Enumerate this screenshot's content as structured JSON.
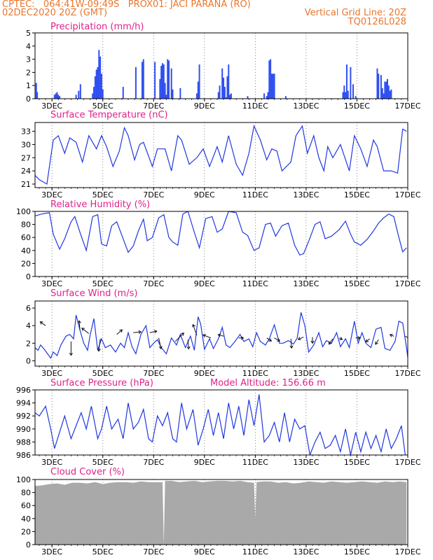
{
  "header": {
    "line1_left": "CPTEC:   064:41W-09:49S   PROX01: JACI PARANA (RO)",
    "line2_left": "02DEC2020 20Z (GMT)",
    "line2_right": "Vertical Grid Line: 20Z",
    "line3_right": "TQ0126L028"
  },
  "colors": {
    "header": "#e8772e",
    "title": "#e0218a",
    "series": "#2038e0",
    "bar": "#2f4ff0",
    "cloud": "#a9a9a9"
  },
  "chart_data": [
    {
      "type": "bar",
      "title": "Precipitation (mm/h)",
      "ylim": [
        0,
        5
      ],
      "yticks": [
        0,
        1,
        2,
        3,
        4,
        5
      ],
      "xlim": [
        2.333,
        17.0
      ],
      "xticks": [
        3,
        5,
        7,
        9,
        11,
        13,
        15,
        17
      ],
      "xticklabels": [
        "3DEC",
        "5DEC",
        "7DEC",
        "9DEC",
        "11DEC",
        "13DEC",
        "15DEC",
        "17DEC"
      ],
      "grid": "dotted",
      "x": [
        2.38,
        2.42,
        3.1,
        3.15,
        3.2,
        3.25,
        3.3,
        3.95,
        4.05,
        4.12,
        4.6,
        4.65,
        4.7,
        4.75,
        4.8,
        4.85,
        4.9,
        4.95,
        5.0,
        5.8,
        6.3,
        6.55,
        6.6,
        7.05,
        7.25,
        7.3,
        7.35,
        7.4,
        7.45,
        7.5,
        7.55,
        7.6,
        7.7,
        7.75,
        8.05,
        8.7,
        8.75,
        8.8,
        9.55,
        9.6,
        9.7,
        9.75,
        9.8,
        9.85,
        9.9,
        9.95,
        10.0,
        10.05,
        10.7,
        11.35,
        11.45,
        11.5,
        11.55,
        11.6,
        11.65,
        11.7,
        11.75,
        12.2,
        14.45,
        14.5,
        14.55,
        14.6,
        14.65,
        14.75,
        14.85,
        14.95,
        15.8,
        15.85,
        15.95,
        16.0,
        16.05,
        16.1,
        16.15,
        16.2,
        16.25,
        16.3,
        16.35
      ],
      "values": [
        1.2,
        0.5,
        0.3,
        0.4,
        0.5,
        0.3,
        0.2,
        0.3,
        0.6,
        1.1,
        0.4,
        0.9,
        1.7,
        2.2,
        2.4,
        3.7,
        3.2,
        1.9,
        0.7,
        0.9,
        2.4,
        2.8,
        3.0,
        2.8,
        1.5,
        2.5,
        2.7,
        2.6,
        1.2,
        0.3,
        3.0,
        2.9,
        2.3,
        0.7,
        0.8,
        0.4,
        1.3,
        2.6,
        0.5,
        1.0,
        2.3,
        1.6,
        0.9,
        0.1,
        1.7,
        2.6,
        0.3,
        0.4,
        0.2,
        0.4,
        0.2,
        0.5,
        2.9,
        3.0,
        1.9,
        1.9,
        1.9,
        0.2,
        0.5,
        1.0,
        0.5,
        2.6,
        0.6,
        2.4,
        1.1,
        0.2,
        2.3,
        1.9,
        1.8,
        0.8,
        0.4,
        1.3,
        1.3,
        1.5,
        1.0,
        0.6,
        0.7
      ]
    },
    {
      "type": "line",
      "title": "Surface Temperature (nC)",
      "ylim": [
        20.2,
        35.0
      ],
      "yticks": [
        21,
        24,
        27,
        30,
        33
      ],
      "xlim": [
        2.333,
        17.0
      ],
      "xticks": [
        3,
        5,
        7,
        9,
        11,
        13,
        15,
        17
      ],
      "xticklabels": [
        "3DEC",
        "5DEC",
        "7DEC",
        "9DEC",
        "11DEC",
        "13DEC",
        "15DEC",
        "17DEC"
      ],
      "grid": "dotted",
      "x": [
        2.33,
        2.5,
        2.8,
        3.05,
        3.25,
        3.5,
        3.7,
        3.95,
        4.2,
        4.45,
        4.75,
        4.95,
        5.15,
        5.4,
        5.65,
        5.85,
        6.0,
        6.25,
        6.45,
        6.6,
        6.95,
        7.15,
        7.45,
        7.7,
        7.95,
        8.1,
        8.4,
        8.7,
        8.95,
        9.2,
        9.5,
        9.7,
        9.95,
        10.25,
        10.5,
        10.75,
        10.95,
        11.2,
        11.45,
        11.65,
        11.85,
        12.05,
        12.4,
        12.6,
        12.85,
        13.05,
        13.3,
        13.5,
        13.7,
        13.85,
        14.05,
        14.35,
        14.7,
        14.9,
        15.15,
        15.4,
        15.65,
        15.8,
        16.05,
        16.35,
        16.6,
        16.8,
        16.95
      ],
      "values": [
        23.0,
        22.0,
        21.0,
        31.0,
        32.0,
        28.0,
        31.5,
        30.5,
        26.0,
        32.0,
        29.0,
        32.0,
        29.5,
        25.0,
        28.5,
        33.8,
        32.0,
        26.5,
        30.0,
        30.5,
        25.0,
        29.0,
        29.0,
        24.0,
        32.0,
        31.0,
        25.5,
        27.0,
        29.0,
        25.0,
        29.5,
        26.0,
        32.0,
        25.5,
        23.0,
        28.0,
        34.2,
        31.0,
        26.5,
        29.0,
        28.5,
        24.0,
        26.0,
        32.0,
        34.2,
        28.0,
        32.0,
        27.0,
        24.0,
        29.5,
        27.0,
        30.0,
        24.0,
        32.0,
        29.0,
        25.0,
        31.0,
        29.5,
        24.0,
        24.0,
        23.5,
        33.5,
        33.0
      ]
    },
    {
      "type": "line",
      "title": "Relative Humidity (%)",
      "ylim": [
        0,
        100
      ],
      "yticks": [
        0,
        20,
        40,
        60,
        80,
        100
      ],
      "xlim": [
        2.333,
        17.0
      ],
      "xticks": [
        3,
        5,
        7,
        9,
        11,
        13,
        15,
        17
      ],
      "xticklabels": [
        "3DEC",
        "5DEC",
        "7DEC",
        "9DEC",
        "11DEC",
        "13DEC",
        "15DEC",
        "17DEC"
      ],
      "grid": "dotted",
      "x": [
        2.33,
        2.6,
        2.9,
        3.05,
        3.3,
        3.5,
        3.75,
        3.9,
        4.1,
        4.35,
        4.6,
        4.8,
        4.95,
        5.15,
        5.35,
        5.55,
        5.8,
        6.0,
        6.2,
        6.4,
        6.6,
        6.75,
        6.95,
        7.2,
        7.4,
        7.6,
        7.75,
        7.95,
        8.15,
        8.35,
        8.6,
        8.8,
        9.05,
        9.3,
        9.5,
        9.7,
        9.95,
        10.25,
        10.5,
        10.7,
        10.95,
        11.15,
        11.4,
        11.6,
        11.8,
        12.05,
        12.3,
        12.55,
        12.75,
        12.9,
        13.1,
        13.35,
        13.55,
        13.75,
        14.0,
        14.3,
        14.55,
        14.75,
        14.9,
        15.15,
        15.4,
        15.65,
        15.85,
        16.05,
        16.25,
        16.45,
        16.65,
        16.8,
        16.95
      ],
      "values": [
        93,
        96,
        98,
        65,
        42,
        58,
        84,
        92,
        68,
        40,
        92,
        95,
        50,
        47,
        78,
        84,
        58,
        37,
        47,
        70,
        88,
        55,
        60,
        90,
        95,
        60,
        53,
        48,
        96,
        100,
        68,
        44,
        89,
        92,
        68,
        73,
        100,
        98,
        68,
        63,
        40,
        44,
        80,
        82,
        62,
        78,
        82,
        48,
        33,
        35,
        54,
        80,
        84,
        58,
        62,
        72,
        85,
        65,
        53,
        48,
        57,
        70,
        82,
        90,
        96,
        92,
        60,
        38,
        44
      ]
    },
    {
      "type": "line",
      "title": "Surface Wind (m/s)",
      "ylim": [
        -0.6,
        6.8
      ],
      "yticks": [
        0,
        2,
        4,
        6
      ],
      "xlim": [
        2.333,
        17.0
      ],
      "xticks": [
        3,
        5,
        7,
        9,
        11,
        13,
        15,
        17
      ],
      "xticklabels": [
        "3DEC",
        "5DEC",
        "7DEC",
        "9DEC",
        "11DEC",
        "13DEC",
        "15DEC",
        "17DEC"
      ],
      "grid": "dotted",
      "x": [
        2.33,
        2.45,
        2.55,
        2.7,
        2.8,
        2.95,
        3.05,
        3.2,
        3.35,
        3.55,
        3.7,
        3.85,
        3.95,
        4.1,
        4.25,
        4.4,
        4.5,
        4.65,
        4.8,
        4.95,
        5.1,
        5.3,
        5.5,
        5.7,
        5.85,
        6.0,
        6.15,
        6.3,
        6.5,
        6.7,
        6.85,
        7.0,
        7.15,
        7.3,
        7.5,
        7.7,
        7.9,
        8.05,
        8.25,
        8.45,
        8.6,
        8.75,
        8.85,
        9.0,
        9.2,
        9.35,
        9.55,
        9.7,
        9.85,
        10.0,
        10.2,
        10.4,
        10.55,
        10.75,
        10.9,
        11.05,
        11.2,
        11.4,
        11.55,
        11.75,
        11.95,
        12.1,
        12.3,
        12.5,
        12.65,
        12.8,
        12.95,
        13.1,
        13.3,
        13.5,
        13.65,
        13.8,
        14.0,
        14.2,
        14.35,
        14.55,
        14.7,
        14.9,
        15.05,
        15.2,
        15.35,
        15.55,
        15.75,
        15.95,
        16.1,
        16.3,
        16.5,
        16.65,
        16.8,
        16.95,
        17.0
      ],
      "values": [
        1.5,
        1.2,
        1.8,
        1.3,
        0.9,
        0.3,
        1.0,
        0.6,
        1.8,
        2.8,
        3.0,
        2.5,
        5.2,
        3.5,
        2.0,
        1.2,
        2.9,
        4.8,
        1.2,
        2.5,
        1.5,
        1.8,
        1.0,
        2.0,
        1.5,
        3.2,
        1.6,
        0.8,
        3.0,
        4.0,
        1.5,
        2.0,
        2.4,
        1.5,
        0.8,
        2.6,
        1.8,
        3.0,
        1.5,
        2.8,
        1.2,
        5.0,
        4.2,
        1.3,
        2.5,
        1.4,
        2.5,
        3.8,
        1.8,
        1.5,
        2.2,
        3.0,
        2.2,
        2.5,
        1.6,
        3.2,
        2.2,
        1.8,
        2.5,
        4.1,
        2.0,
        2.0,
        2.3,
        1.9,
        2.6,
        5.5,
        4.0,
        1.0,
        1.8,
        3.2,
        1.6,
        2.3,
        2.0,
        3.2,
        1.6,
        2.5,
        1.5,
        4.5,
        2.0,
        3.2,
        2.0,
        1.5,
        3.6,
        3.8,
        1.4,
        1.2,
        2.2,
        4.5,
        4.3,
        1.5,
        0.4
      ],
      "vectors": [
        [
          2.75,
          4.0,
          -0.35,
          0.25
        ],
        [
          3.75,
          2.2,
          0.0,
          -0.9
        ],
        [
          4.1,
          3.5,
          -0.05,
          0.6
        ],
        [
          4.45,
          3.1,
          -0.45,
          0.35
        ],
        [
          4.9,
          2.5,
          -0.1,
          -0.8
        ],
        [
          5.55,
          3.0,
          0.35,
          0.3
        ],
        [
          6.2,
          3.2,
          0.5,
          0.05
        ],
        [
          6.85,
          3.2,
          0.45,
          0.1
        ],
        [
          7.2,
          2.6,
          0.15,
          -0.7
        ],
        [
          7.85,
          2.2,
          0.55,
          0.55
        ],
        [
          8.35,
          2.4,
          0.05,
          -0.6
        ],
        [
          8.7,
          2.9,
          -0.25,
          0.7
        ],
        [
          9.25,
          2.6,
          -0.5,
          0.2
        ],
        [
          9.75,
          2.8,
          -0.35,
          0.1
        ],
        [
          10.35,
          2.6,
          0.3,
          0.0
        ],
        [
          11.45,
          2.6,
          0.3,
          -0.2
        ],
        [
          11.75,
          2.6,
          0.35,
          -0.2
        ],
        [
          12.4,
          2.5,
          0.05,
          -0.6
        ],
        [
          12.9,
          2.7,
          -0.35,
          -0.15
        ],
        [
          13.25,
          2.7,
          0.0,
          -0.4
        ],
        [
          14.05,
          2.5,
          -0.25,
          -0.35
        ],
        [
          14.3,
          2.6,
          0.2,
          -0.1
        ],
        [
          14.95,
          2.6,
          0.3,
          0.0
        ],
        [
          15.5,
          2.5,
          -0.25,
          -0.2
        ],
        [
          15.85,
          2.4,
          -0.2,
          -0.3
        ],
        [
          16.45,
          2.8,
          -0.25,
          0.1
        ],
        [
          16.9,
          2.8,
          0.35,
          -0.2
        ]
      ]
    },
    {
      "type": "line",
      "title": "Surface Pressure (hPa)",
      "annotation": "Model Altitude: 156.66 m",
      "ylim": [
        986,
        996
      ],
      "yticks": [
        986,
        988,
        990,
        992,
        994,
        996
      ],
      "xlim": [
        2.333,
        17.0
      ],
      "xticks": [
        3,
        5,
        7,
        9,
        11,
        13,
        15,
        17
      ],
      "xticklabels": [
        "3DEC",
        "5DEC",
        "7DEC",
        "9DEC",
        "11DEC",
        "13DEC",
        "15DEC",
        "17DEC"
      ],
      "grid": "dotted",
      "x": [
        2.33,
        2.5,
        2.75,
        2.95,
        3.1,
        3.3,
        3.5,
        3.75,
        3.95,
        4.15,
        4.35,
        4.55,
        4.8,
        4.95,
        5.15,
        5.35,
        5.6,
        5.8,
        6.0,
        6.2,
        6.4,
        6.6,
        6.8,
        6.95,
        7.15,
        7.35,
        7.55,
        7.75,
        7.9,
        8.1,
        8.3,
        8.55,
        8.75,
        8.95,
        9.15,
        9.35,
        9.55,
        9.75,
        9.95,
        10.15,
        10.35,
        10.55,
        10.75,
        10.95,
        11.15,
        11.35,
        11.55,
        11.75,
        11.95,
        12.15,
        12.35,
        12.55,
        12.75,
        12.95,
        13.15,
        13.35,
        13.55,
        13.75,
        13.95,
        14.15,
        14.35,
        14.55,
        14.75,
        14.95,
        15.15,
        15.35,
        15.55,
        15.75,
        15.95,
        16.15,
        16.35,
        16.55,
        16.75,
        16.9
      ],
      "values": [
        992.5,
        992.0,
        993.5,
        990.0,
        987.0,
        989.5,
        992.0,
        988.5,
        990.5,
        992.5,
        990.0,
        993.5,
        988.5,
        990.0,
        993.5,
        990.0,
        991.5,
        988.5,
        994.0,
        990.0,
        991.0,
        993.0,
        988.5,
        988.0,
        992.0,
        990.5,
        992.5,
        988.5,
        988.0,
        994.0,
        990.0,
        993.0,
        987.5,
        990.0,
        993.0,
        989.0,
        992.5,
        988.5,
        994.0,
        990.0,
        993.5,
        989.0,
        994.5,
        990.5,
        995.3,
        988.0,
        989.0,
        991.0,
        988.0,
        992.5,
        988.0,
        991.5,
        990.0,
        990.5,
        986.0,
        988.0,
        989.5,
        987.0,
        987.5,
        989.0,
        986.5,
        990.0,
        986.0,
        989.5,
        986.5,
        989.5,
        987.0,
        989.0,
        986.5,
        990.0,
        987.0,
        988.5,
        990.5,
        986.0
      ]
    },
    {
      "type": "area",
      "title": "Cloud Cover (%)",
      "ylim": [
        0,
        100
      ],
      "yticks": [
        0,
        20,
        40,
        60,
        80,
        100
      ],
      "xlim": [
        2.333,
        17.0
      ],
      "xticks": [
        3,
        5,
        7,
        9,
        11,
        13,
        15,
        17
      ],
      "xticklabels": [
        "3DEC",
        "5DEC",
        "7DEC",
        "9DEC",
        "11DEC",
        "13DEC",
        "15DEC",
        "17DEC"
      ],
      "grid": "dotted",
      "x": [
        2.33,
        2.6,
        2.9,
        3.2,
        3.5,
        3.8,
        4.1,
        4.4,
        4.7,
        5.0,
        5.3,
        5.6,
        5.9,
        6.2,
        6.5,
        6.8,
        7.1,
        7.35,
        7.4,
        7.45,
        7.7,
        8.0,
        8.3,
        8.6,
        8.9,
        9.2,
        9.5,
        9.8,
        10.1,
        10.4,
        10.7,
        10.95,
        11.0,
        11.05,
        11.3,
        11.6,
        11.9,
        12.2,
        12.5,
        12.8,
        13.1,
        13.4,
        13.7,
        14.0,
        14.3,
        14.6,
        14.9,
        15.2,
        15.5,
        15.8,
        16.1,
        16.4,
        16.7,
        16.95
      ],
      "values": [
        90,
        91,
        93,
        94,
        92,
        95,
        95,
        94,
        96,
        93,
        95,
        96,
        96,
        95,
        97,
        96,
        96,
        96,
        0,
        98,
        98,
        96,
        97,
        98,
        96,
        97,
        98,
        98,
        97,
        98,
        96,
        95,
        40,
        96,
        97,
        97,
        95,
        96,
        94,
        95,
        97,
        96,
        95,
        97,
        96,
        95,
        96,
        97,
        96,
        95,
        97,
        96,
        97,
        96
      ]
    }
  ]
}
